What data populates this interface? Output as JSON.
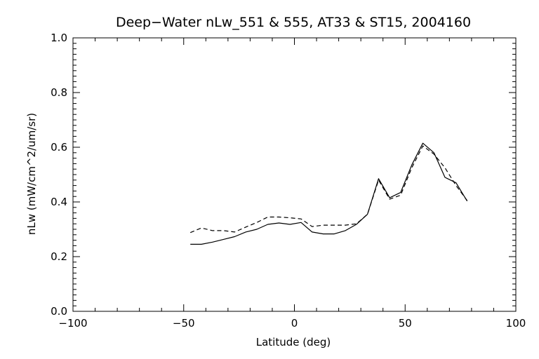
{
  "chart_data": {
    "type": "line",
    "title": "Deep−Water nLw_551 & 555, AT33 & ST15, 2004160",
    "xlabel": "Latitude (deg)",
    "ylabel": "nLw (mW/cm^2/um/sr)",
    "xlim": [
      -100,
      100
    ],
    "ylim": [
      0.0,
      1.0
    ],
    "xticks": [
      -100,
      -50,
      0,
      50,
      100
    ],
    "xtick_labels": [
      "−100",
      "−50",
      "0",
      "50",
      "100"
    ],
    "yticks": [
      0.0,
      0.2,
      0.4,
      0.6,
      0.8,
      1.0
    ],
    "ytick_labels": [
      "0.0",
      "0.2",
      "0.4",
      "0.6",
      "0.8",
      "1.0"
    ],
    "grid": false,
    "series": [
      {
        "line_style": "solid",
        "color": "#000000",
        "x": [
          -47,
          -42,
          -37,
          -32,
          -27,
          -22,
          -17,
          -12,
          -7,
          -2,
          3,
          8,
          13,
          18,
          23,
          28,
          33,
          38,
          43,
          48,
          53,
          58,
          63,
          68,
          73,
          78
        ],
        "y": [
          0.245,
          0.245,
          0.253,
          0.263,
          0.273,
          0.29,
          0.3,
          0.318,
          0.323,
          0.318,
          0.325,
          0.29,
          0.283,
          0.283,
          0.295,
          0.318,
          0.355,
          0.485,
          0.415,
          0.435,
          0.535,
          0.615,
          0.58,
          0.49,
          0.47,
          0.403
        ]
      },
      {
        "line_style": "dashed",
        "color": "#000000",
        "x": [
          -47,
          -42,
          -37,
          -32,
          -27,
          -22,
          -17,
          -12,
          -7,
          -2,
          3,
          8,
          13,
          18,
          23,
          28,
          33,
          38,
          43,
          48,
          53,
          58,
          63,
          68,
          73,
          78
        ],
        "y": [
          0.288,
          0.305,
          0.295,
          0.295,
          0.29,
          0.308,
          0.325,
          0.345,
          0.345,
          0.342,
          0.338,
          0.31,
          0.315,
          0.315,
          0.315,
          0.32,
          0.355,
          0.48,
          0.41,
          0.425,
          0.525,
          0.605,
          0.575,
          0.525,
          0.46,
          0.405
        ]
      }
    ]
  }
}
